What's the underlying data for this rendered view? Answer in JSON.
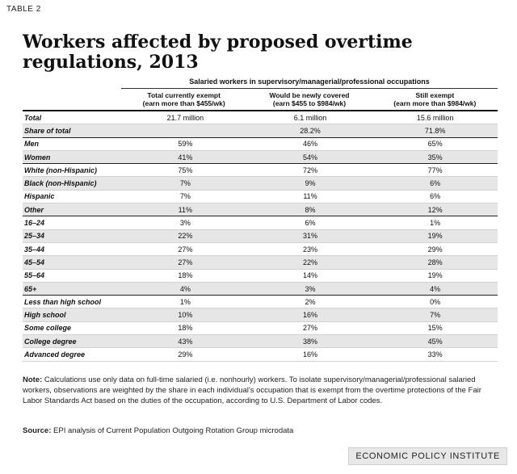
{
  "table_label": "TABLE 2",
  "title": "Workers affected by proposed overtime regulations, 2013",
  "supertitle": "Salaried workers in supervisory/managerial/professional occupations",
  "columns": [
    {
      "line1": "Total currently exempt",
      "line2": "(earn more than $455/wk)"
    },
    {
      "line1": "Would be newly covered",
      "line2": "(earn $455 to $984/wk)"
    },
    {
      "line1": "Still exempt",
      "line2": "(earn more than $984/wk)"
    }
  ],
  "rows": [
    {
      "label": "Total",
      "values": [
        "21.7 million",
        "6.1 million",
        "15.6 million"
      ]
    },
    {
      "label": "Share of total",
      "values": [
        "",
        "28.2%",
        "71.8%"
      ]
    },
    {
      "label": "Men",
      "values": [
        "59%",
        "46%",
        "65%"
      ]
    },
    {
      "label": "Women",
      "values": [
        "41%",
        "54%",
        "35%"
      ]
    },
    {
      "label": "White (non-Hispanic)",
      "values": [
        "75%",
        "72%",
        "77%"
      ]
    },
    {
      "label": "Black (non-Hispanic)",
      "values": [
        "7%",
        "9%",
        "6%"
      ]
    },
    {
      "label": "Hispanic",
      "values": [
        "7%",
        "11%",
        "6%"
      ]
    },
    {
      "label": "Other",
      "values": [
        "11%",
        "8%",
        "12%"
      ]
    },
    {
      "label": "16–24",
      "values": [
        "3%",
        "6%",
        "1%"
      ]
    },
    {
      "label": "25–34",
      "values": [
        "22%",
        "31%",
        "19%"
      ]
    },
    {
      "label": "35–44",
      "values": [
        "27%",
        "23%",
        "29%"
      ]
    },
    {
      "label": "45–54",
      "values": [
        "27%",
        "22%",
        "28%"
      ]
    },
    {
      "label": "55–64",
      "values": [
        "18%",
        "14%",
        "19%"
      ]
    },
    {
      "label": "65+",
      "values": [
        "4%",
        "3%",
        "4%"
      ]
    },
    {
      "label": "Less than high school",
      "values": [
        "1%",
        "2%",
        "0%"
      ]
    },
    {
      "label": "High school",
      "values": [
        "10%",
        "16%",
        "7%"
      ]
    },
    {
      "label": "Some college",
      "values": [
        "18%",
        "27%",
        "15%"
      ]
    },
    {
      "label": "College degree",
      "values": [
        "43%",
        "38%",
        "45%"
      ]
    },
    {
      "label": "Advanced degree",
      "values": [
        "29%",
        "16%",
        "33%"
      ]
    }
  ],
  "note_label": "Note:",
  "note_text": "Calculations use only data on full-time salaried (i.e. nonhourly) workers. To isolate supervisory/managerial/professional salaried workers, observations are weighted by the share in each individual's occupation that is exempt from the overtime protections of the Fair Labor Standards Act based on the duties of the occupation, according to U.S. Department of Labor codes.",
  "source_label": "Source:",
  "source_text": "EPI analysis of Current Population Outgoing Rotation Group microdata",
  "organization": "ECONOMIC POLICY INSTITUTE"
}
